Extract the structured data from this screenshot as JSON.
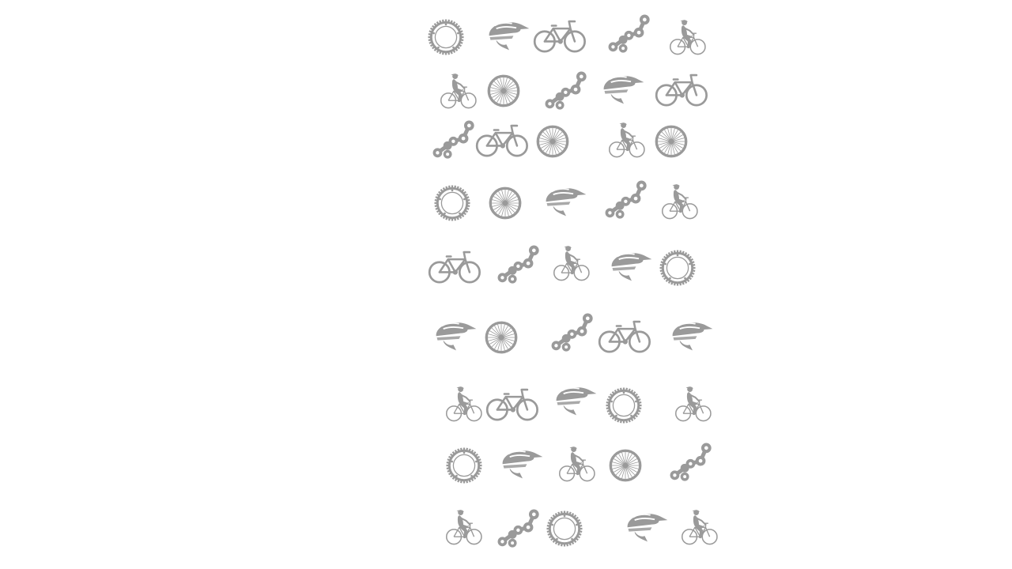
{
  "theme": {
    "icon_color": "#9a9a9a",
    "background": "#ffffff"
  },
  "pattern": {
    "rows": [
      [
        "sprocket-icon",
        "helmet-icon",
        "bicycle-icon",
        "chain-link-icon",
        "cyclist-icon"
      ],
      [
        "cyclist-icon",
        "wheel-icon",
        "chain-link-icon",
        "helmet-icon",
        "bicycle-icon"
      ],
      [
        "chain-link-icon",
        "bicycle-icon",
        "wheel-icon",
        "cyclist-icon",
        "wheel-icon"
      ],
      [
        "sprocket-icon",
        "wheel-icon",
        "helmet-icon",
        "chain-link-icon",
        "cyclist-icon"
      ],
      [
        "bicycle-icon",
        "chain-link-icon",
        "cyclist-icon",
        "helmet-icon",
        "sprocket-icon"
      ],
      [
        "helmet-icon",
        "wheel-icon",
        "chain-link-icon",
        "bicycle-icon",
        "helmet-icon"
      ],
      [
        "cyclist-icon",
        "bicycle-icon",
        "helmet-icon",
        "sprocket-icon",
        "cyclist-icon"
      ],
      [
        "sprocket-icon",
        "helmet-icon",
        "cyclist-icon",
        "wheel-icon",
        "chain-link-icon"
      ],
      [
        "cyclist-icon",
        "chain-link-icon",
        "sprocket-icon",
        "helmet-icon",
        "cyclist-icon"
      ]
    ]
  }
}
